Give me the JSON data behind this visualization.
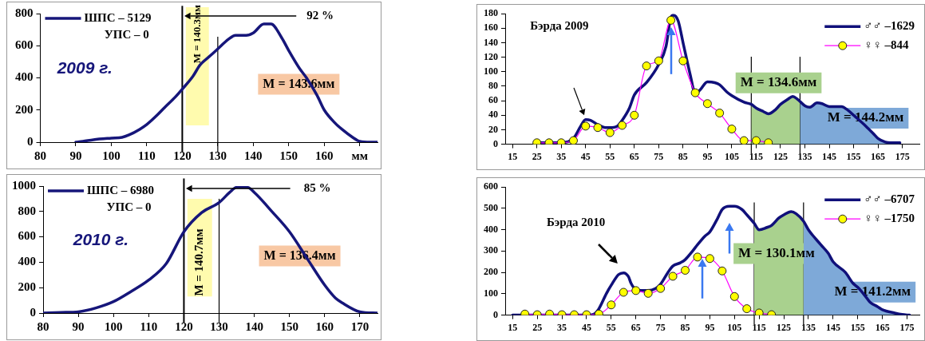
{
  "chart_data": [
    {
      "type": "line",
      "legend": "top left",
      "xlim": [
        80,
        175
      ],
      "xticks": [
        80,
        90,
        100,
        110,
        120,
        130,
        140,
        150,
        160,
        {
          "value": 170,
          "label": "мм"
        }
      ],
      "ylim": [
        0,
        800
      ],
      "yticks": [
        0,
        200,
        400,
        600,
        800
      ],
      "grid": false,
      "series": [
        {
          "name": "ШПС – 5129",
          "color": "#16167a",
          "marker": "none",
          "x": [
            90,
            92,
            95,
            100,
            103,
            105,
            108,
            110,
            113,
            115,
            118,
            120,
            123,
            125,
            128,
            130,
            133,
            135,
            138,
            140,
            143,
            145,
            148,
            150,
            153,
            155,
            158,
            160,
            163,
            165,
            168,
            170,
            173,
            175
          ],
          "values": [
            0,
            5,
            15,
            25,
            30,
            45,
            80,
            110,
            170,
            215,
            280,
            330,
            410,
            480,
            540,
            580,
            640,
            665,
            665,
            680,
            735,
            735,
            650,
            570,
            460,
            400,
            290,
            200,
            120,
            80,
            30,
            5,
            0,
            0
          ]
        }
      ],
      "ref_lines": [
        {
          "axis": "x",
          "value": 120,
          "color": "#000000"
        },
        {
          "axis": "x",
          "value": 130,
          "color": "#000000"
        }
      ],
      "bands": [
        {
          "axis": "x",
          "from": 121,
          "to": 127.5,
          "label": "M = 140.3мм",
          "color": "#fffaa0"
        }
      ],
      "annotations": [
        "УПС – 0",
        "2009 г.",
        "92 %",
        "M = 143.6мм"
      ]
    },
    {
      "type": "line",
      "legend": "top left",
      "xlim": [
        80,
        175
      ],
      "xticks": [
        80,
        90,
        100,
        110,
        120,
        130,
        140,
        150,
        160,
        170
      ],
      "ylim": [
        0,
        1000
      ],
      "yticks": [
        0,
        200,
        400,
        600,
        800,
        1000
      ],
      "grid": false,
      "series": [
        {
          "name": "ШПС – 6980",
          "color": "#16167a",
          "marker": "none",
          "x": [
            80,
            85,
            90,
            95,
            100,
            105,
            110,
            115,
            120,
            125,
            130,
            133,
            135,
            138,
            140,
            145,
            150,
            155,
            160,
            163,
            165,
            170,
            175
          ],
          "values": [
            0,
            5,
            10,
            40,
            90,
            170,
            260,
            390,
            640,
            790,
            870,
            950,
            990,
            990,
            950,
            800,
            640,
            430,
            220,
            120,
            80,
            10,
            0
          ]
        }
      ],
      "ref_lines": [
        {
          "axis": "x",
          "value": 120,
          "color": "#000000"
        },
        {
          "axis": "x",
          "value": 130,
          "color": "#000000"
        }
      ],
      "bands": [
        {
          "axis": "x",
          "from": 121,
          "to": 128,
          "label": "M = 140.7мм",
          "color": "#fffaa0"
        }
      ],
      "annotations": [
        "УПС – 0",
        "2010 г.",
        "85 %",
        "M = 136.4мм"
      ]
    },
    {
      "type": "line",
      "legend": "top right",
      "xlim": [
        12,
        182
      ],
      "xticks": [
        15,
        25,
        35,
        45,
        55,
        65,
        75,
        85,
        95,
        105,
        115,
        125,
        135,
        145,
        155,
        165,
        175
      ],
      "ylim": [
        0,
        180
      ],
      "yticks": [
        0,
        20,
        40,
        60,
        80,
        100,
        120,
        140,
        160,
        180
      ],
      "grid": false,
      "series": [
        {
          "type": "area",
          "color": "#a9d18e",
          "marker": "none",
          "x": [
            113,
            115,
            118,
            120,
            123,
            125,
            128,
            130,
            132,
            133
          ],
          "values": [
            55,
            50,
            45,
            42,
            48,
            55,
            62,
            66,
            62,
            59
          ]
        },
        {
          "type": "area",
          "color": "#7ea9d8",
          "marker": "none",
          "x": [
            133,
            135,
            137,
            140,
            142,
            145,
            150,
            153,
            155,
            160,
            163,
            165,
            168,
            170,
            174
          ],
          "values": [
            59,
            53,
            51,
            57,
            56,
            52,
            52,
            46,
            40,
            25,
            15,
            8,
            3,
            2,
            2
          ]
        },
        {
          "name": "♂♂ –1629",
          "color": "#10107a",
          "marker": "none",
          "x": [
            25,
            30,
            35,
            40,
            43,
            45,
            47,
            50,
            53,
            55,
            58,
            60,
            63,
            65,
            70,
            75,
            78,
            80,
            81,
            83,
            85,
            88,
            90,
            92,
            95,
            98,
            100,
            103,
            105,
            110,
            113,
            115,
            118,
            120,
            123,
            125,
            128,
            130,
            132,
            135,
            137,
            140,
            142,
            145,
            150,
            153,
            155,
            160,
            163,
            165,
            168,
            170,
            174
          ],
          "values": [
            2,
            2,
            2,
            8,
            25,
            34,
            33,
            27,
            23,
            23,
            25,
            33,
            50,
            68,
            85,
            110,
            135,
            175,
            178,
            170,
            140,
            95,
            70,
            75,
            86,
            85,
            82,
            72,
            67,
            58,
            55,
            50,
            45,
            42,
            48,
            55,
            62,
            66,
            62,
            53,
            51,
            57,
            56,
            52,
            52,
            46,
            40,
            25,
            15,
            8,
            3,
            2,
            2
          ]
        },
        {
          "name": "♀♀ –844",
          "color": "#ff00ff",
          "marker": "circle",
          "x": [
            25,
            30,
            35,
            40,
            45,
            50,
            55,
            60,
            65,
            70,
            75,
            80,
            85,
            90,
            95,
            100,
            105,
            110,
            115,
            120
          ],
          "values": [
            2,
            2,
            2,
            5,
            25,
            23,
            16,
            26,
            40,
            108,
            115,
            171,
            115,
            71,
            56,
            43,
            21,
            5,
            5,
            2
          ]
        }
      ],
      "ref_lines": [
        {
          "axis": "x",
          "value": 113,
          "color": "#000000"
        },
        {
          "axis": "x",
          "value": 133,
          "color": "#000000"
        }
      ],
      "annotations": [
        "Бэрда 2009",
        "M = 134.6мм",
        "M = 144.2мм"
      ]
    },
    {
      "type": "line",
      "legend": "top right",
      "xlim": [
        12,
        180
      ],
      "xticks": [
        15,
        25,
        35,
        45,
        55,
        65,
        75,
        85,
        95,
        105,
        115,
        125,
        135,
        145,
        155,
        165,
        175
      ],
      "ylim": [
        0,
        600
      ],
      "yticks": [
        0,
        100,
        200,
        300,
        400,
        500,
        600
      ],
      "grid": false,
      "series": [
        {
          "type": "area",
          "color": "#a9d18e",
          "marker": "none",
          "x": [
            113,
            115,
            118,
            120,
            123,
            125,
            128,
            130,
            133
          ],
          "values": [
            430,
            400,
            410,
            420,
            455,
            470,
            485,
            475,
            440
          ]
        },
        {
          "type": "area",
          "color": "#7ea9d8",
          "marker": "none",
          "x": [
            133,
            135,
            140,
            143,
            145,
            150,
            153,
            155,
            158,
            160,
            163,
            165,
            170,
            173,
            176
          ],
          "values": [
            440,
            400,
            330,
            290,
            250,
            200,
            150,
            130,
            90,
            60,
            40,
            25,
            10,
            3,
            0
          ]
        },
        {
          "name": "♂♂ –6707",
          "color": "#10107a",
          "marker": "none",
          "x": [
            15,
            20,
            45,
            48,
            50,
            53,
            55,
            58,
            60,
            62,
            63,
            65,
            68,
            70,
            73,
            75,
            78,
            80,
            83,
            85,
            88,
            90,
            93,
            95,
            98,
            100,
            103,
            105,
            108,
            110,
            113,
            115,
            118,
            120,
            123,
            125,
            128,
            130,
            133,
            135,
            140,
            143,
            145,
            150,
            153,
            155,
            158,
            160,
            163,
            165,
            170,
            173,
            176
          ],
          "values": [
            0,
            0,
            0,
            5,
            30,
            100,
            140,
            190,
            198,
            180,
            150,
            120,
            115,
            115,
            125,
            145,
            200,
            230,
            245,
            260,
            300,
            330,
            370,
            390,
            450,
            495,
            510,
            510,
            495,
            470,
            430,
            400,
            410,
            420,
            455,
            470,
            485,
            475,
            440,
            400,
            330,
            290,
            250,
            200,
            150,
            130,
            90,
            60,
            40,
            25,
            10,
            3,
            0
          ]
        },
        {
          "name": "♀♀ –1750",
          "color": "#ff00ff",
          "marker": "circle",
          "x": [
            20,
            25,
            30,
            35,
            40,
            45,
            50,
            55,
            60,
            65,
            70,
            75,
            80,
            85,
            90,
            95,
            100,
            105,
            110,
            115,
            120
          ],
          "values": [
            5,
            2,
            5,
            2,
            2,
            2,
            5,
            48,
            107,
            115,
            102,
            125,
            182,
            210,
            272,
            265,
            207,
            87,
            30,
            10,
            2
          ]
        }
      ],
      "ref_lines": [
        {
          "axis": "x",
          "value": 113,
          "color": "#000000"
        },
        {
          "axis": "x",
          "value": 133,
          "color": "#000000"
        }
      ],
      "annotations": [
        "Бэрда 2010",
        "M = 130.1мм",
        "M = 141.2мм"
      ]
    }
  ]
}
